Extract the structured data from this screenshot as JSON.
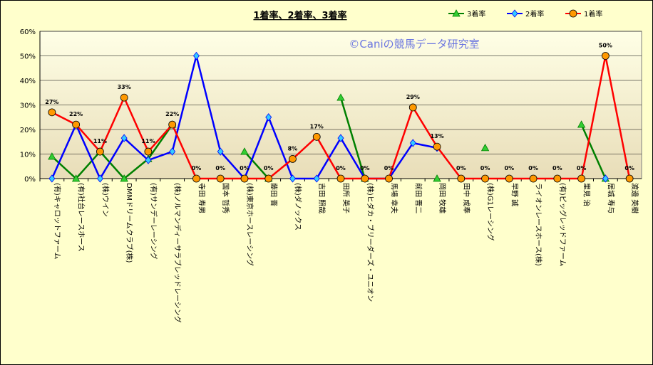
{
  "chart_data": {
    "type": "line",
    "title": "1着率、2着率、3着率",
    "watermark": "©Caniの競馬データ研究室",
    "ylim": [
      0,
      60
    ],
    "yticks": [
      "0%",
      "10%",
      "20%",
      "30%",
      "40%",
      "50%",
      "60%"
    ],
    "grid": "horizontal",
    "legend_position": "top-right",
    "plot_background": [
      "#ffffe6",
      "#e8ddb8"
    ],
    "categories": [
      "(有)キャロットファーム",
      "(有)社台レースホース",
      "(株)ウイン",
      "DMMドリームクラブ(株)",
      "(有)サンデーレーシング",
      "(株)ノルマンディーサラブレッドレーシング",
      "寺田 寿男",
      "国本 哲秀",
      "(株)東京ホースレーシング",
      "藤田 晋",
      "(株)ダノックス",
      "吉田 照哉",
      "田所 英子",
      "(株)ヒダカ・ブリーダーズ・ユニオン",
      "馬場 幸夫",
      "前田 晋二",
      "岡田 牧雄",
      "田中 成奉",
      "(株)G1レーシング",
      "早野 誠",
      "ライオンレースホース(株)",
      "(有)ビッグレッドファーム",
      "里見 治",
      "居城 寿与",
      "渡邊 英樹"
    ],
    "series": [
      {
        "name": "3着率",
        "color": "#008000",
        "marker": "triangle",
        "marker_fill": "#33cc33",
        "values": [
          9,
          0,
          11,
          0,
          8,
          22,
          null,
          null,
          11,
          0,
          null,
          null,
          33,
          0,
          null,
          null,
          0,
          null,
          12.5,
          null,
          null,
          null,
          22,
          0,
          null
        ]
      },
      {
        "name": "2着率",
        "color": "#0000ff",
        "marker": "diamond",
        "marker_fill": "#33ccff",
        "values": [
          0,
          22,
          0,
          16.5,
          7.5,
          11,
          50,
          11,
          0,
          25,
          0,
          0,
          16.5,
          0,
          0,
          14.5,
          12.5,
          null,
          null,
          null,
          null,
          null,
          null,
          0,
          null
        ]
      },
      {
        "name": "1着率",
        "color": "#ff0000",
        "marker": "circle",
        "marker_fill": "#ff9900",
        "values": [
          27,
          22,
          11,
          33,
          11,
          22,
          0,
          0,
          0,
          0,
          8,
          17,
          0,
          0,
          0,
          29,
          13,
          0,
          0,
          0,
          0,
          0,
          0,
          50,
          0
        ],
        "labels": [
          "27%",
          "22%",
          "11%",
          "33%",
          "11%",
          "22%",
          "0%",
          "0%",
          "0%",
          "0%",
          "8%",
          "17%",
          "0%",
          "0%",
          "0%",
          "29%",
          "13%",
          "0%",
          "0%",
          "0%",
          "0%",
          "0%",
          "0%",
          "50%",
          "0%"
        ]
      }
    ],
    "legend_order": [
      0,
      1,
      2
    ]
  }
}
